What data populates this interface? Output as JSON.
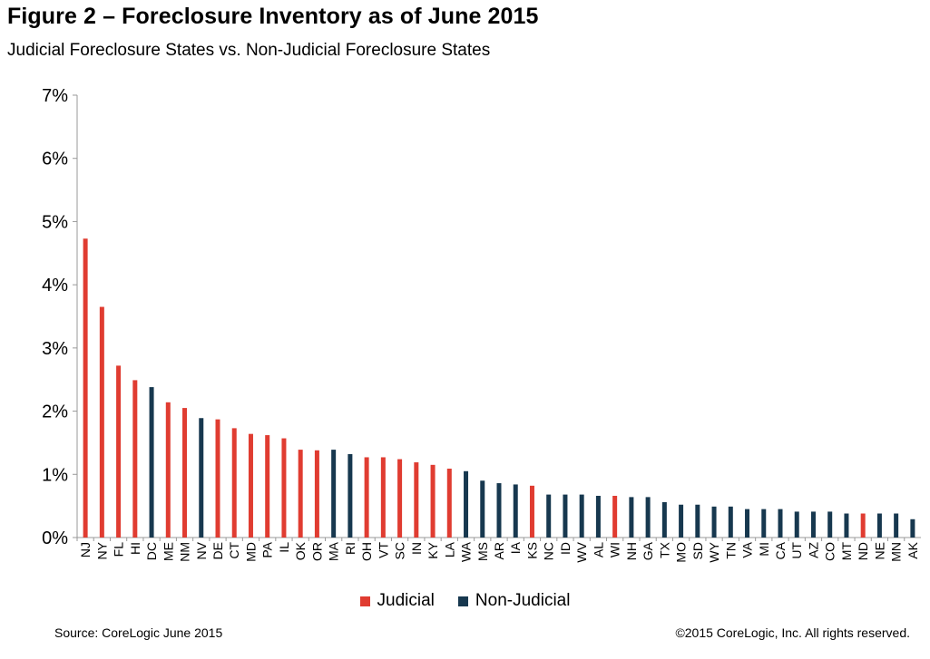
{
  "title": "Figure 2 – Foreclosure Inventory as of June 2015",
  "subtitle": "Judicial Foreclosure States vs. Non-Judicial Foreclosure States",
  "source": "Source: CoreLogic  June 2015",
  "copyright": "©2015 CoreLogic, Inc.  All rights reserved.",
  "colors": {
    "judicial": "#e03c31",
    "non_judicial": "#17384f"
  },
  "chart_data": {
    "type": "bar",
    "title": "Figure 2 – Foreclosure Inventory as of June 2015",
    "ylim": [
      0,
      7
    ],
    "yticks": [
      "0%",
      "1%",
      "2%",
      "3%",
      "4%",
      "5%",
      "6%",
      "7%"
    ],
    "grid": false,
    "legend_position": "bottom",
    "legend": [
      {
        "name": "Judicial",
        "color": "#e03c31"
      },
      {
        "name": "Non-Judicial",
        "color": "#17384f"
      }
    ],
    "categories": [
      "NJ",
      "NY",
      "FL",
      "HI",
      "DC",
      "ME",
      "NM",
      "NV",
      "DE",
      "CT",
      "MD",
      "PA",
      "IL",
      "OK",
      "OR",
      "MA",
      "RI",
      "OH",
      "VT",
      "SC",
      "IN",
      "KY",
      "LA",
      "WA",
      "MS",
      "AR",
      "IA",
      "KS",
      "NC",
      "ID",
      "WV",
      "AL",
      "WI",
      "NH",
      "GA",
      "TX",
      "MO",
      "SD",
      "WY",
      "TN",
      "VA",
      "MI",
      "CA",
      "UT",
      "AZ",
      "CO",
      "MT",
      "ND",
      "NE",
      "MN",
      "AK"
    ],
    "values": [
      4.73,
      3.65,
      2.72,
      2.49,
      2.38,
      2.14,
      2.05,
      1.89,
      1.87,
      1.73,
      1.64,
      1.62,
      1.57,
      1.39,
      1.38,
      1.39,
      1.32,
      1.27,
      1.27,
      1.24,
      1.19,
      1.15,
      1.09,
      1.05,
      0.9,
      0.86,
      0.84,
      0.82,
      0.68,
      0.68,
      0.68,
      0.66,
      0.66,
      0.64,
      0.64,
      0.56,
      0.52,
      0.52,
      0.49,
      0.49,
      0.45,
      0.45,
      0.45,
      0.41,
      0.41,
      0.41,
      0.38,
      0.38,
      0.38,
      0.38,
      0.29
    ],
    "types": [
      "J",
      "J",
      "J",
      "J",
      "N",
      "J",
      "J",
      "N",
      "J",
      "J",
      "J",
      "J",
      "J",
      "J",
      "J",
      "N",
      "N",
      "J",
      "J",
      "J",
      "J",
      "J",
      "J",
      "N",
      "N",
      "N",
      "N",
      "J",
      "N",
      "N",
      "N",
      "N",
      "J",
      "N",
      "N",
      "N",
      "N",
      "N",
      "N",
      "N",
      "N",
      "N",
      "N",
      "N",
      "N",
      "N",
      "N",
      "J",
      "N",
      "N",
      "N"
    ]
  }
}
